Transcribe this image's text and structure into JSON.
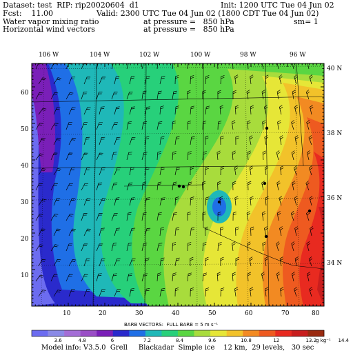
{
  "header": {
    "dataset_line": "Dataset: test  RIP: rip20020604  d1",
    "init_line": "Init: 1200 UTC Tue 04 Jun 02",
    "fcst_line": "Fcst:    11.00",
    "valid_line": "Valid: 2300 UTC Tue 04 Jun 02 (1800 CDT Tue 04 Jun 02)",
    "field1_name": "Water vapor mixing ratio",
    "field1_level": "at pressure =   850 hPa",
    "field1_sm": "sm= 1",
    "field2_name": "Horizontal wind vectors",
    "field2_level": "at pressure =   850 hPa"
  },
  "map": {
    "lon_labels": [
      "106 W",
      "104 W",
      "102 W",
      "100 W",
      "98 W",
      "96 W"
    ],
    "lat_labels": [
      "40 N",
      "38 N",
      "36 N",
      "34 N"
    ],
    "grid_y_labels": [
      "60",
      "50",
      "40",
      "30",
      "20",
      "10"
    ],
    "grid_x_labels": [
      "10",
      "20",
      "30",
      "40",
      "50",
      "60",
      "70",
      "80"
    ],
    "barb_caption": "BARB VECTORS:  FULL BARB = 5 m s⁻¹"
  },
  "colorbar": {
    "colors": [
      "#6c6cf0",
      "#8a8ae6",
      "#a46ed6",
      "#9a4ec6",
      "#7a1fb8",
      "#2a2acc",
      "#1f6fe6",
      "#1fb8b8",
      "#27d07a",
      "#5ad642",
      "#a8dc3c",
      "#e6e637",
      "#f2c22a",
      "#f28a22",
      "#ee5a20",
      "#e82a20",
      "#c81e1e",
      "#9a2a10"
    ],
    "tick_labels": [
      "3.6",
      "4.8",
      "6",
      "7.2",
      "8.4",
      "9.6",
      "10.8",
      "12",
      "13.2",
      "14.4"
    ],
    "unit": "g kg⁻¹"
  },
  "footer": {
    "model_info": "Model info: V3.5.0  Grell     Blackadar  Simple ice    12 km,  29 levels,   30 sec"
  }
}
